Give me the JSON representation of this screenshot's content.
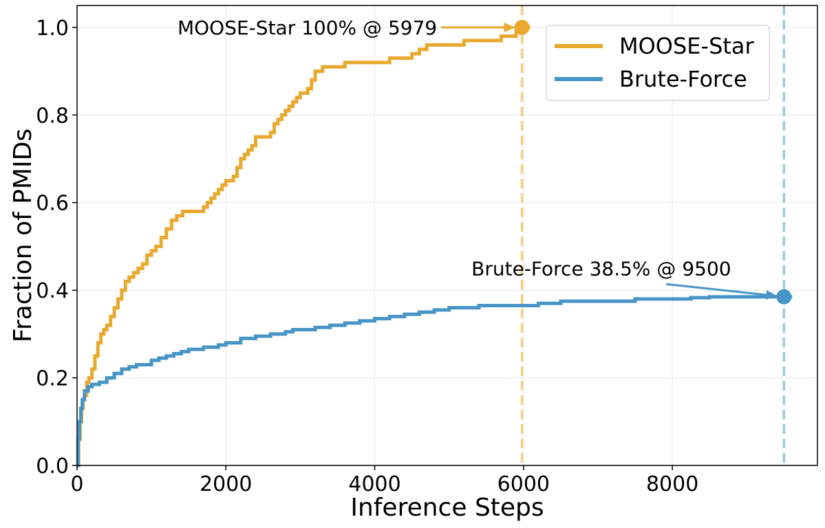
{
  "chart_data": {
    "type": "line",
    "xlabel": "Inference Steps",
    "ylabel": "Fraction of PMIDs",
    "xlim": [
      0,
      9950
    ],
    "ylim": [
      0,
      1.05
    ],
    "xticks": [
      0,
      2000,
      4000,
      6000,
      8000
    ],
    "xtick_labels": [
      "0",
      "2000",
      "4000",
      "6000",
      "8000"
    ],
    "yticks": [
      0.0,
      0.2,
      0.4,
      0.6,
      0.8,
      1.0
    ],
    "ytick_labels": [
      "0.0",
      "0.2",
      "0.4",
      "0.6",
      "0.8",
      "1.0"
    ],
    "grid": true,
    "legend_position": "top-right",
    "series": [
      {
        "name": "MOOSE-Star",
        "color": "#E8A92E",
        "step": true,
        "x": [
          0,
          20,
          40,
          60,
          80,
          100,
          130,
          160,
          200,
          240,
          280,
          320,
          360,
          400,
          450,
          500,
          550,
          600,
          650,
          700,
          760,
          820,
          880,
          940,
          1000,
          1060,
          1130,
          1200,
          1270,
          1340,
          1420,
          1500,
          1600,
          1700,
          1750,
          1800,
          1850,
          1900,
          1950,
          2000,
          2050,
          2100,
          2150,
          2200,
          2250,
          2300,
          2350,
          2400,
          2500,
          2600,
          2650,
          2700,
          2750,
          2800,
          2850,
          2900,
          2950,
          3000,
          3050,
          3100,
          3150,
          3200,
          3250,
          3300,
          3400,
          3600,
          3800,
          4000,
          4200,
          4400,
          4500,
          4600,
          4700,
          4800,
          5000,
          5200,
          5400,
          5500,
          5700,
          5900,
          5979
        ],
        "y": [
          0.0,
          0.06,
          0.1,
          0.13,
          0.15,
          0.16,
          0.19,
          0.2,
          0.22,
          0.25,
          0.28,
          0.3,
          0.31,
          0.32,
          0.34,
          0.36,
          0.38,
          0.4,
          0.42,
          0.43,
          0.44,
          0.45,
          0.46,
          0.48,
          0.49,
          0.5,
          0.52,
          0.54,
          0.56,
          0.57,
          0.58,
          0.58,
          0.58,
          0.59,
          0.6,
          0.61,
          0.62,
          0.63,
          0.64,
          0.65,
          0.65,
          0.66,
          0.68,
          0.7,
          0.71,
          0.72,
          0.73,
          0.75,
          0.75,
          0.76,
          0.78,
          0.79,
          0.8,
          0.81,
          0.82,
          0.83,
          0.84,
          0.85,
          0.85,
          0.86,
          0.88,
          0.9,
          0.9,
          0.91,
          0.91,
          0.92,
          0.92,
          0.92,
          0.93,
          0.93,
          0.94,
          0.95,
          0.96,
          0.96,
          0.96,
          0.97,
          0.97,
          0.97,
          0.98,
          0.99,
          1.0
        ]
      },
      {
        "name": "Brute-Force",
        "color": "#4795C6",
        "step": true,
        "x": [
          0,
          15,
          30,
          50,
          70,
          100,
          150,
          200,
          300,
          400,
          500,
          600,
          700,
          800,
          1000,
          1100,
          1200,
          1300,
          1400,
          1500,
          1700,
          1900,
          2000,
          2200,
          2400,
          2600,
          2800,
          2900,
          3000,
          3200,
          3400,
          3600,
          3800,
          4000,
          4200,
          4400,
          4600,
          4800,
          5000,
          5400,
          5800,
          6200,
          6500,
          7000,
          7500,
          8000,
          8250,
          8500,
          9000,
          9500
        ],
        "y": [
          0.0,
          0.06,
          0.1,
          0.13,
          0.15,
          0.17,
          0.18,
          0.185,
          0.19,
          0.2,
          0.21,
          0.22,
          0.225,
          0.23,
          0.24,
          0.245,
          0.25,
          0.255,
          0.26,
          0.265,
          0.27,
          0.275,
          0.28,
          0.29,
          0.295,
          0.3,
          0.305,
          0.31,
          0.31,
          0.315,
          0.32,
          0.325,
          0.33,
          0.335,
          0.34,
          0.345,
          0.35,
          0.355,
          0.36,
          0.365,
          0.365,
          0.37,
          0.375,
          0.375,
          0.38,
          0.38,
          0.383,
          0.385,
          0.385,
          0.385
        ]
      }
    ],
    "vlines": [
      {
        "x": 5979,
        "color": "#F5D08A",
        "style": "dashed"
      },
      {
        "x": 9500,
        "color": "#9ACBE0",
        "style": "dashed"
      }
    ],
    "annotations": [
      {
        "text": "MOOSE-Star 100% @ 5979",
        "x": 5979,
        "y": 1.0,
        "color": "#E8A92E",
        "text_x": 1350,
        "text_y": 1.0,
        "align": "left"
      },
      {
        "text": "Brute-Force 38.5% @ 9500",
        "x": 9500,
        "y": 0.385,
        "color": "#4795C6",
        "text_x": 5300,
        "text_y": 0.45,
        "align": "left"
      }
    ]
  }
}
